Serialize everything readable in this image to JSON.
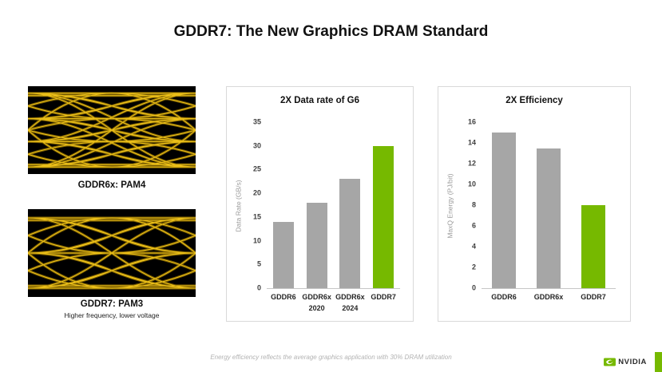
{
  "slide": {
    "title": "GDDR7: The New Graphics DRAM Standard",
    "footnote": "Energy efficiency reflects the average graphics application with 30% DRAM utilization"
  },
  "eye_diagrams": [
    {
      "label": "GDDR6x: PAM4",
      "sublabel": "",
      "signal_levels": 4
    },
    {
      "label": "GDDR7: PAM3",
      "sublabel": "Higher frequency, lower voltage",
      "signal_levels": 3
    }
  ],
  "colors": {
    "nvidia_green": "#76b900",
    "bar_gray": "#a6a6a6",
    "eye_trace_bright": "#f0c419",
    "eye_trace_glow": "#8a6a00",
    "eye_background": "#000000"
  },
  "chart_data": [
    {
      "type": "bar",
      "title": "2X Data rate of G6",
      "categories": [
        "GDDR6",
        "GDDR6x\n2020",
        "GDDR6x\n2024",
        "GDDR7"
      ],
      "values": [
        14,
        18,
        23,
        30
      ],
      "bar_colors": [
        "#a6a6a6",
        "#a6a6a6",
        "#a6a6a6",
        "#76b900"
      ],
      "xlabel": "",
      "ylabel": "Data Rate (GB/s)",
      "ylim": [
        0,
        35
      ],
      "ytick_step": 5,
      "grid": false,
      "legend": null
    },
    {
      "type": "bar",
      "title": "2X Efficiency",
      "categories": [
        "GDDR6",
        "GDDR6x",
        "GDDR7"
      ],
      "values": [
        15,
        13.5,
        8
      ],
      "bar_colors": [
        "#a6a6a6",
        "#a6a6a6",
        "#76b900"
      ],
      "xlabel": "",
      "ylabel": "MaxQ Energy (PJ/bit)",
      "ylim": [
        0,
        16
      ],
      "ytick_step": 2,
      "grid": false,
      "legend": null
    }
  ],
  "logo": {
    "brand": "NVIDIA"
  }
}
